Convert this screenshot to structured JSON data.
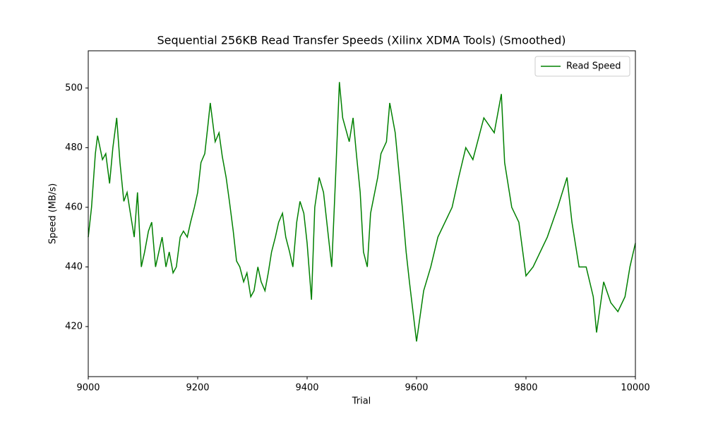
{
  "chart_data": {
    "type": "line",
    "title": "Sequential 256KB Read Transfer Speeds (Xilinx XDMA Tools) (Smoothed)",
    "x_label": "Trial",
    "y_label": "Speed (MB/s)",
    "x": [
      9000,
      9006,
      9013,
      9017,
      9026,
      9032,
      9039,
      9045,
      9052,
      9058,
      9065,
      9071,
      9077,
      9084,
      9090,
      9097,
      9103,
      9110,
      9116,
      9123,
      9129,
      9135,
      9142,
      9148,
      9155,
      9161,
      9168,
      9174,
      9181,
      9187,
      9194,
      9200,
      9206,
      9213,
      9219,
      9223,
      9232,
      9239,
      9245,
      9252,
      9258,
      9265,
      9271,
      9277,
      9284,
      9290,
      9297,
      9303,
      9310,
      9316,
      9323,
      9329,
      9335,
      9342,
      9348,
      9355,
      9361,
      9368,
      9374,
      9381,
      9387,
      9394,
      9400,
      9408,
      9414,
      9422,
      9430,
      9439,
      9445,
      9452,
      9459,
      9465,
      9477,
      9484,
      9490,
      9497,
      9503,
      9510,
      9516,
      9529,
      9535,
      9545,
      9551,
      9561,
      9574,
      9581,
      9587,
      9600,
      9613,
      9626,
      9639,
      9652,
      9665,
      9677,
      9690,
      9703,
      9723,
      9742,
      9755,
      9761,
      9774,
      9787,
      9800,
      9813,
      9826,
      9839,
      9858,
      9875,
      9884,
      9897,
      9910,
      9923,
      9929,
      9942,
      9955,
      9968,
      9981,
      9990,
      10000
    ],
    "series": [
      {
        "name": "Read Speed",
        "color": "#008000",
        "values": [
          450,
          460,
          478,
          484,
          476,
          478,
          468,
          480,
          490,
          475,
          462,
          465,
          458,
          450,
          465,
          440,
          445,
          452,
          455,
          440,
          445,
          450,
          440,
          445,
          438,
          440,
          450,
          452,
          450,
          455,
          460,
          465,
          475,
          478,
          488,
          495,
          482,
          485,
          477,
          470,
          462,
          452,
          442,
          440,
          435,
          438,
          430,
          432,
          440,
          435,
          432,
          438,
          445,
          450,
          455,
          458,
          450,
          445,
          440,
          455,
          462,
          458,
          448,
          429,
          460,
          470,
          465,
          450,
          440,
          470,
          502,
          490,
          482,
          490,
          478,
          465,
          445,
          440,
          458,
          470,
          478,
          482,
          495,
          485,
          460,
          445,
          435,
          415,
          432,
          440,
          450,
          455,
          460,
          470,
          480,
          476,
          490,
          485,
          498,
          475,
          460,
          455,
          437,
          440,
          445,
          450,
          460,
          470,
          455,
          440,
          440,
          430,
          418,
          435,
          428,
          425,
          430,
          440,
          448
        ]
      }
    ],
    "xlim": [
      9000,
      10000
    ],
    "xticks": [
      9000,
      9200,
      9400,
      9600,
      9800,
      10000
    ],
    "ylim": [
      403.2,
      512.5
    ],
    "yticks": [
      420,
      440,
      460,
      480,
      500
    ],
    "grid": false,
    "legend": "upper right"
  }
}
